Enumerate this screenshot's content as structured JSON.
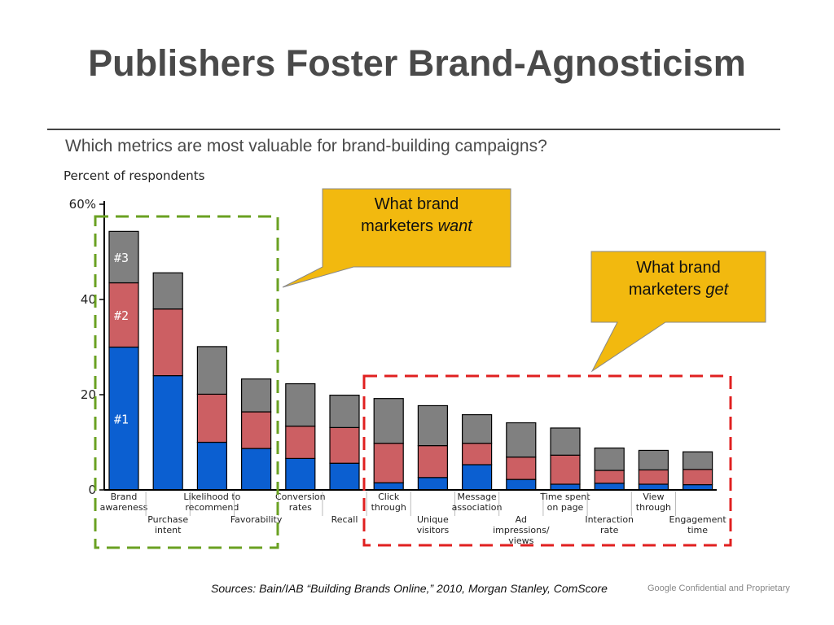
{
  "slide": {
    "title": "Publishers Foster Brand-Agnosticism",
    "subtitle": "Which metrics are most valuable for brand-building campaigns?",
    "source": "Sources: Bain/IAB “Building Brands Online,” 2010, Morgan Stanley, ComScore",
    "confidential": "Google Confidential and Proprietary"
  },
  "callouts": {
    "want_line1": "What brand",
    "want_line2_prefix": "marketers ",
    "want_line2_em": "want",
    "get_line1": "What brand",
    "get_line2_prefix": "marketers ",
    "get_line2_em": "get"
  },
  "chart_data": {
    "type": "bar",
    "stacked": true,
    "ylabel": "Percent of respondents",
    "ylim": [
      0,
      60
    ],
    "yticks": [
      "0",
      "20",
      "40",
      "60%"
    ],
    "categories": [
      [
        "Brand",
        "awareness"
      ],
      [
        "Purchase",
        "intent"
      ],
      [
        "Likelihood  to",
        "recommend"
      ],
      [
        "Favorability"
      ],
      [
        "Conversion",
        "rates"
      ],
      [
        "Recall"
      ],
      [
        "Click",
        "through"
      ],
      [
        "Unique",
        "visitors"
      ],
      [
        "Message",
        "association"
      ],
      [
        "Ad",
        "impressions/",
        "views"
      ],
      [
        "Time spent",
        "on page"
      ],
      [
        "Interaction",
        "rate"
      ],
      [
        "View",
        "through"
      ],
      [
        "Engagement",
        "time"
      ]
    ],
    "series": [
      {
        "name": "#1",
        "color": "#0b5fd1",
        "values": [
          30,
          24,
          10,
          8.7,
          6.6,
          5.6,
          1.5,
          2.6,
          5.3,
          2.2,
          1.2,
          1.4,
          1.2,
          1.1
        ]
      },
      {
        "name": "#2",
        "color": "#cc5f63",
        "values": [
          13.5,
          14,
          10.1,
          7.7,
          6.8,
          7.5,
          8.3,
          6.7,
          4.5,
          4.7,
          6.1,
          2.7,
          3.0,
          3.2
        ]
      },
      {
        "name": "#3",
        "color": "#808080",
        "values": [
          10.8,
          7.6,
          10.0,
          6.9,
          8.9,
          6.8,
          9.4,
          8.4,
          6.0,
          7.2,
          5.7,
          4.7,
          4.1,
          3.7
        ]
      }
    ],
    "series_labels_shown_on": "Brand awareness"
  }
}
